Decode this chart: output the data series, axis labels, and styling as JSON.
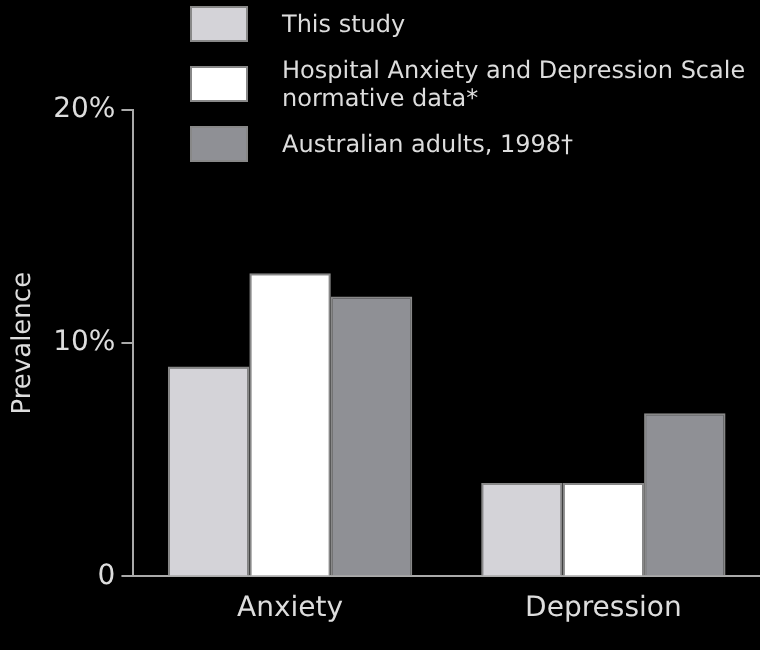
{
  "chart_data": {
    "type": "bar",
    "ylabel": "Prevalence",
    "categories": [
      "Anxiety",
      "Depression"
    ],
    "series": [
      {
        "name": "This study",
        "color": "#d4d3d8",
        "values": [
          9,
          4
        ]
      },
      {
        "name": "Hospital Anxiety and Depression Scale normative data*",
        "color": "#ffffff",
        "values": [
          13,
          4
        ]
      },
      {
        "name": "Australian adults, 1998†",
        "color": "#8f9095",
        "values": [
          12,
          7
        ]
      }
    ],
    "ylim": [
      0,
      20
    ],
    "yticks": [
      {
        "value": 0,
        "label": "0"
      },
      {
        "value": 10,
        "label": "10%"
      },
      {
        "value": 20,
        "label": "20%"
      }
    ],
    "grid": false,
    "legend": "top"
  }
}
